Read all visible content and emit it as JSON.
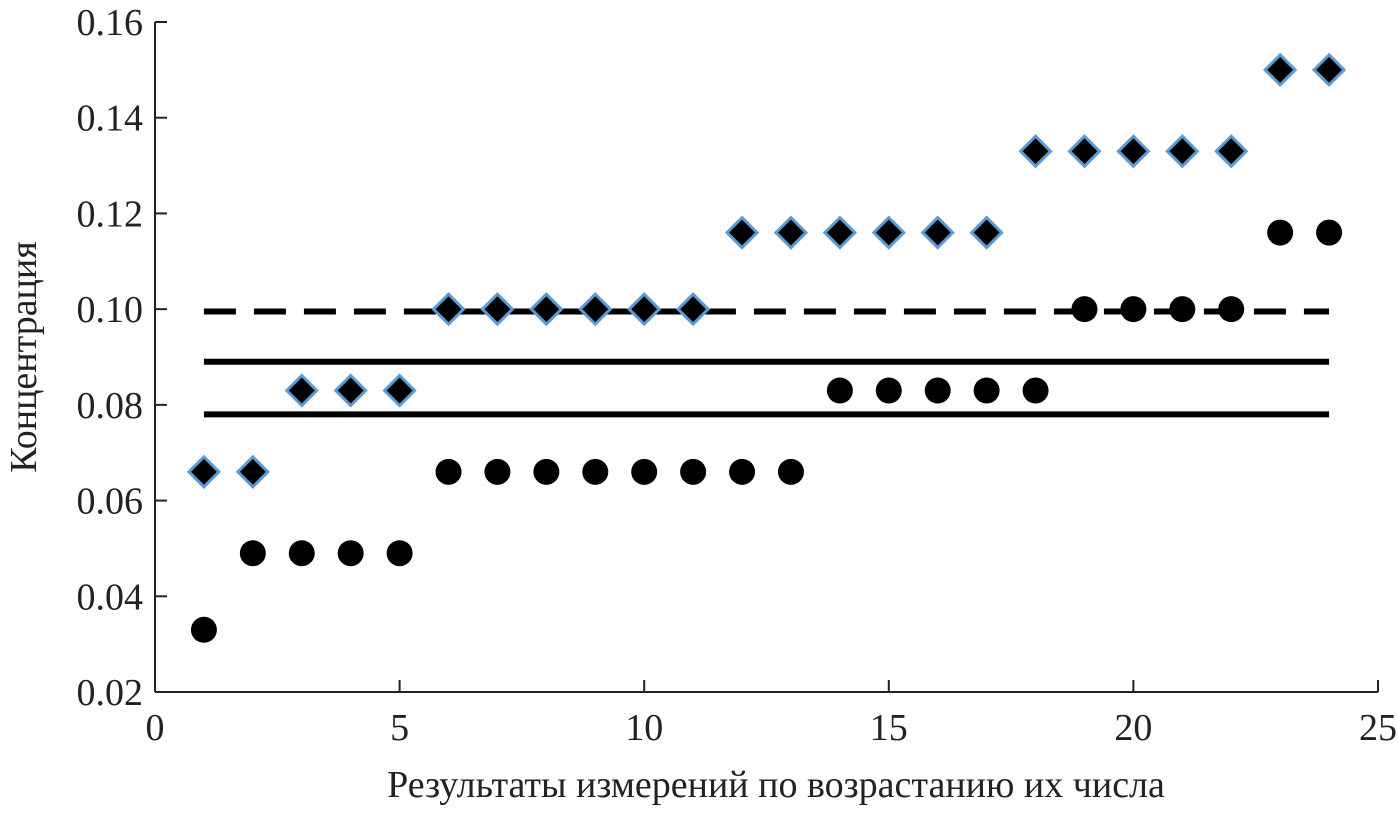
{
  "chart_data": {
    "type": "scatter",
    "title": "",
    "xlabel": "Результаты измерений по возрастанию их числа",
    "ylabel": "Концентрация",
    "xlim": [
      0,
      25
    ],
    "ylim": [
      0.02,
      0.16
    ],
    "x_ticks": [
      "0",
      "5",
      "10",
      "15",
      "20",
      "25"
    ],
    "y_ticks": [
      "0.02",
      "0.04",
      "0.06",
      "0.08",
      "0.10",
      "0.12",
      "0.14",
      "0.16"
    ],
    "grid": false,
    "legend": "none",
    "series": [
      {
        "marker": "diamond",
        "color": "#000000",
        "edge_color": "#5b9bd5",
        "x": [
          1,
          2,
          3,
          4,
          5,
          6,
          7,
          8,
          9,
          10,
          11,
          12,
          13,
          14,
          15,
          16,
          17,
          18,
          19,
          20,
          21,
          22,
          23,
          24
        ],
        "y": [
          0.066,
          0.066,
          0.083,
          0.083,
          0.083,
          0.1,
          0.1,
          0.1,
          0.1,
          0.1,
          0.1,
          0.116,
          0.116,
          0.116,
          0.116,
          0.116,
          0.116,
          0.133,
          0.133,
          0.133,
          0.133,
          0.133,
          0.15,
          0.15
        ]
      },
      {
        "marker": "circle",
        "color": "#000000",
        "x": [
          1,
          2,
          3,
          4,
          5,
          6,
          7,
          8,
          9,
          10,
          11,
          12,
          13,
          14,
          15,
          16,
          17,
          18,
          19,
          20,
          21,
          22,
          23,
          24
        ],
        "y": [
          0.033,
          0.049,
          0.049,
          0.049,
          0.049,
          0.066,
          0.066,
          0.066,
          0.066,
          0.066,
          0.066,
          0.066,
          0.066,
          0.083,
          0.083,
          0.083,
          0.083,
          0.083,
          0.1,
          0.1,
          0.1,
          0.1,
          0.116,
          0.116
        ]
      }
    ],
    "reference_lines": [
      {
        "style": "dashed",
        "color": "#000000",
        "y": 0.0995,
        "x_range": [
          1,
          24
        ]
      },
      {
        "style": "solid",
        "color": "#000000",
        "y": 0.089,
        "x_range": [
          1,
          24
        ]
      },
      {
        "style": "solid",
        "color": "#000000",
        "y": 0.078,
        "x_range": [
          1,
          24
        ]
      }
    ]
  }
}
